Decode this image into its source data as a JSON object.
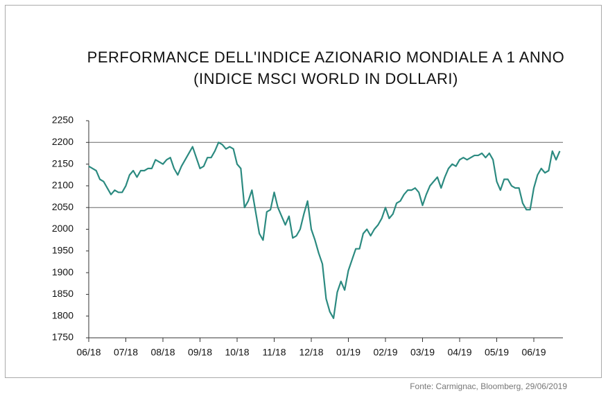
{
  "chart_data": {
    "type": "line",
    "title": "PERFORMANCE DELL'INDICE AZIONARIO MONDIALE A 1 ANNO",
    "subtitle": "(INDICE MSCI WORLD IN DOLLARI)",
    "source": "Fonte: Carmignac, Bloomberg, 29/06/2019",
    "categories": [
      "06/18",
      null,
      null,
      null,
      null,
      null,
      null,
      null,
      null,
      null,
      "07/18",
      null,
      null,
      null,
      null,
      null,
      null,
      null,
      null,
      null,
      "08/18",
      null,
      null,
      null,
      null,
      null,
      null,
      null,
      null,
      null,
      "09/18",
      null,
      null,
      null,
      null,
      null,
      null,
      null,
      null,
      null,
      "10/18",
      null,
      null,
      null,
      null,
      null,
      null,
      null,
      null,
      null,
      "11/18",
      null,
      null,
      null,
      null,
      null,
      null,
      null,
      null,
      null,
      "12/18",
      null,
      null,
      null,
      null,
      null,
      null,
      null,
      null,
      null,
      "01/19",
      null,
      null,
      null,
      null,
      null,
      null,
      null,
      null,
      null,
      "02/19",
      null,
      null,
      null,
      null,
      null,
      null,
      null,
      null,
      null,
      "03/19",
      null,
      null,
      null,
      null,
      null,
      null,
      null,
      null,
      null,
      "04/19",
      null,
      null,
      null,
      null,
      null,
      null,
      null,
      null,
      null,
      "05/19",
      null,
      null,
      null,
      null,
      null,
      null,
      null,
      null,
      null,
      "06/19",
      null,
      null,
      null,
      null,
      null,
      null,
      null
    ],
    "series": [
      {
        "name": "MSCI World",
        "color": "#2b8a80",
        "values": [
          2145,
          2140,
          2135,
          2115,
          2110,
          2095,
          2080,
          2090,
          2085,
          2085,
          2100,
          2125,
          2135,
          2120,
          2135,
          2135,
          2140,
          2140,
          2160,
          2155,
          2150,
          2160,
          2165,
          2140,
          2125,
          2145,
          2160,
          2175,
          2190,
          2165,
          2140,
          2145,
          2165,
          2165,
          2180,
          2200,
          2195,
          2185,
          2190,
          2185,
          2150,
          2140,
          2050,
          2065,
          2090,
          2040,
          1990,
          1975,
          2040,
          2045,
          2085,
          2050,
          2030,
          2010,
          2030,
          1980,
          1985,
          2000,
          2035,
          2065,
          2000,
          1975,
          1945,
          1920,
          1840,
          1810,
          1795,
          1855,
          1880,
          1860,
          1905,
          1930,
          1955,
          1955,
          1990,
          2000,
          1985,
          2000,
          2010,
          2025,
          2050,
          2025,
          2035,
          2060,
          2065,
          2080,
          2090,
          2090,
          2095,
          2085,
          2055,
          2080,
          2100,
          2110,
          2120,
          2095,
          2120,
          2140,
          2150,
          2145,
          2160,
          2165,
          2160,
          2165,
          2170,
          2170,
          2175,
          2165,
          2175,
          2160,
          2110,
          2090,
          2115,
          2115,
          2100,
          2095,
          2095,
          2060,
          2045,
          2045,
          2095,
          2125,
          2140,
          2130,
          2135,
          2180,
          2160,
          2180
        ]
      }
    ],
    "ylim": [
      1750,
      2250
    ],
    "yticks": [
      1750,
      1800,
      1850,
      1900,
      1950,
      2000,
      2050,
      2100,
      2150,
      2200,
      2250
    ],
    "reference_lines": [
      2200,
      2050
    ]
  }
}
